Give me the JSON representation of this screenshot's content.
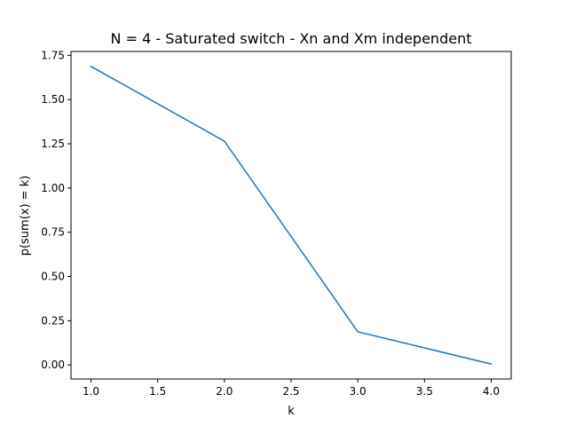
{
  "chart_data": {
    "type": "line",
    "title": "N = 4 - Saturated switch - Xn and Xm independent",
    "xlabel": "k",
    "ylabel": "p(sum(x) = k)",
    "x": [
      1.0,
      2.0,
      3.0,
      4.0
    ],
    "series": [
      {
        "values": [
          1.6875,
          1.265,
          0.1875,
          0.005
        ]
      }
    ],
    "xlim": [
      0.85,
      4.15
    ],
    "ylim": [
      -0.0794,
      1.7719
    ],
    "xticks": [
      1.0,
      1.5,
      2.0,
      2.5,
      3.0,
      3.5,
      4.0
    ],
    "xtick_labels": [
      "1.0",
      "1.5",
      "2.0",
      "2.5",
      "3.0",
      "3.5",
      "4.0"
    ],
    "yticks": [
      0.0,
      0.25,
      0.5,
      0.75,
      1.0,
      1.25,
      1.5,
      1.75
    ],
    "ytick_labels": [
      "0.00",
      "0.25",
      "0.50",
      "0.75",
      "1.00",
      "1.25",
      "1.50",
      "1.75"
    ],
    "grid": false,
    "colors": {
      "line": "#1f77b4",
      "axes": "#000000"
    }
  }
}
